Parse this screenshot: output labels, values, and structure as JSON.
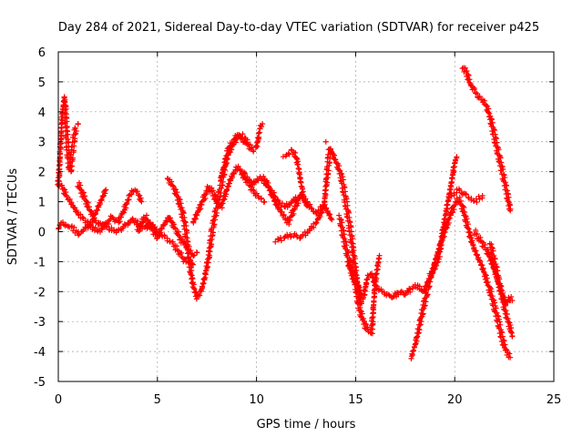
{
  "chart_data": {
    "type": "scatter",
    "title": "Day 284 of 2021, Sidereal Day-to-day VTEC variation (SDTVAR) for receiver p425",
    "xlabel": "GPS time / hours",
    "ylabel": "SDTVAR / TECUs",
    "xlim": [
      0,
      25
    ],
    "ylim": [
      -5,
      6
    ],
    "xticks": [
      "0",
      "5",
      "10",
      "15",
      "20",
      "25"
    ],
    "yticks": [
      "-5",
      "-4",
      "-3",
      "-2",
      "-1",
      "0",
      "1",
      "2",
      "3",
      "4",
      "5",
      "6"
    ],
    "grid": true,
    "marker": "+",
    "color": "#ff0000",
    "series": [
      {
        "name": "s1",
        "x": [
          0.0,
          0.15,
          0.3,
          0.45,
          0.6,
          0.75,
          0.9,
          1.0,
          1.2,
          1.5,
          1.8,
          2.0,
          2.3,
          2.6,
          2.9,
          3.2,
          3.5,
          3.8,
          4.1,
          4.4,
          4.6,
          4.8,
          5.0,
          5.2,
          5.4,
          5.6,
          5.8,
          6.0,
          6.2,
          6.4,
          6.6,
          6.8
        ],
        "y": [
          0.1,
          0.3,
          0.25,
          0.15,
          0.2,
          0.1,
          0.0,
          -0.1,
          0.0,
          0.2,
          0.4,
          0.3,
          0.2,
          0.1,
          0.0,
          0.1,
          0.3,
          0.4,
          0.2,
          0.1,
          0.3,
          0.2,
          0.0,
          -0.1,
          -0.2,
          -0.3,
          -0.4,
          -0.6,
          -0.8,
          -1.0,
          -0.9,
          -1.1
        ]
      },
      {
        "name": "s2",
        "x": [
          0.0,
          0.1,
          0.2,
          0.3,
          0.35,
          0.4,
          0.5,
          0.6,
          0.7,
          0.8,
          0.9,
          1.0
        ],
        "y": [
          1.5,
          2.7,
          3.9,
          4.5,
          4.3,
          3.5,
          2.5,
          2.0,
          2.6,
          3.2,
          3.5,
          3.6
        ]
      },
      {
        "name": "s3",
        "x": [
          0.0,
          0.2,
          0.4,
          0.6,
          0.8,
          1.0,
          1.3,
          1.6,
          2.0,
          2.4,
          2.7,
          3.0,
          3.3,
          3.6,
          3.8,
          4.0,
          4.2
        ],
        "y": [
          1.6,
          1.5,
          1.2,
          1.0,
          0.8,
          0.6,
          0.4,
          0.2,
          0.0,
          0.2,
          0.5,
          0.3,
          0.7,
          1.2,
          1.4,
          1.3,
          1.0
        ]
      },
      {
        "name": "s4",
        "x": [
          1.0,
          1.2,
          1.4,
          1.6,
          1.8,
          2.0,
          2.2,
          2.4
        ],
        "y": [
          1.6,
          1.3,
          1.0,
          0.7,
          0.5,
          0.8,
          1.1,
          1.4
        ]
      },
      {
        "name": "s5",
        "x": [
          4.0,
          4.2,
          4.4,
          4.6,
          4.8,
          5.0,
          5.2,
          5.4,
          5.6,
          5.8,
          6.0,
          6.2,
          6.5,
          6.8,
          7.0
        ],
        "y": [
          0.0,
          0.3,
          0.5,
          0.2,
          0.0,
          -0.2,
          0.1,
          0.3,
          0.5,
          0.2,
          0.0,
          -0.3,
          -0.5,
          -0.8,
          -0.7
        ]
      },
      {
        "name": "s6",
        "x": [
          5.5,
          5.8,
          6.0,
          6.2,
          6.4,
          6.6,
          6.8,
          7.0,
          7.2,
          7.4,
          7.6,
          7.8,
          8.0,
          8.2,
          8.4,
          8.6,
          8.8,
          9.0,
          9.2,
          9.4,
          9.6
        ],
        "y": [
          1.8,
          1.5,
          1.2,
          0.8,
          0.2,
          -1.0,
          -1.8,
          -2.2,
          -2.0,
          -1.5,
          -0.8,
          0.2,
          0.8,
          1.5,
          2.2,
          2.8,
          3.0,
          3.2,
          3.1,
          3.0,
          2.9
        ]
      },
      {
        "name": "s7",
        "x": [
          6.8,
          7.0,
          7.2,
          7.4,
          7.6,
          7.8,
          8.0,
          8.2,
          8.4,
          8.6,
          8.8,
          9.0,
          9.2,
          9.4,
          9.6,
          9.8,
          10.0,
          10.2,
          10.4
        ],
        "y": [
          0.3,
          0.6,
          0.9,
          1.2,
          1.5,
          1.3,
          1.0,
          0.8,
          1.2,
          1.6,
          1.9,
          2.1,
          2.0,
          1.8,
          1.6,
          1.4,
          1.2,
          1.1,
          1.0
        ]
      },
      {
        "name": "s8",
        "x": [
          8.2,
          8.4,
          8.6,
          8.8,
          9.0,
          9.2,
          9.4,
          9.6,
          9.8,
          10.0,
          10.1,
          10.2,
          10.3
        ],
        "y": [
          1.8,
          2.2,
          2.6,
          2.9,
          3.1,
          3.25,
          3.1,
          2.9,
          2.7,
          2.8,
          3.2,
          3.5,
          3.6
        ]
      },
      {
        "name": "s9",
        "x": [
          9.0,
          9.4,
          9.8,
          10.2,
          10.6,
          11.0,
          11.4,
          11.8,
          12.2,
          12.6,
          13.0,
          13.4,
          13.8
        ],
        "y": [
          2.2,
          1.9,
          1.6,
          1.8,
          1.5,
          1.1,
          0.8,
          1.0,
          1.2,
          0.9,
          0.6,
          0.9,
          0.4
        ]
      },
      {
        "name": "s10",
        "x": [
          10.4,
          10.6,
          10.8,
          11.0,
          11.2,
          11.4,
          11.6,
          11.8,
          12.0,
          12.2
        ],
        "y": [
          1.8,
          1.5,
          1.2,
          0.9,
          0.7,
          0.5,
          0.3,
          0.6,
          0.9,
          1.2
        ]
      },
      {
        "name": "s11",
        "x": [
          11.4,
          11.6,
          11.8,
          12.0,
          12.1,
          12.2,
          12.3,
          12.4,
          12.6
        ],
        "y": [
          2.5,
          2.6,
          2.7,
          2.5,
          2.2,
          1.8,
          1.4,
          1.1,
          0.9
        ]
      },
      {
        "name": "s12",
        "x": [
          11.0,
          11.4,
          11.8,
          12.2,
          12.6,
          13.0,
          13.4,
          13.7,
          13.9,
          14.1,
          14.3,
          14.5,
          14.7,
          14.9,
          15.1,
          15.3
        ],
        "y": [
          -0.3,
          -0.2,
          -0.1,
          -0.2,
          0.0,
          0.3,
          0.8,
          2.8,
          2.5,
          2.2,
          1.8,
          1.0,
          0.2,
          -0.8,
          -1.8,
          -2.4
        ]
      },
      {
        "name": "s13",
        "x": [
          14.2,
          14.4,
          14.6,
          14.8,
          15.0,
          15.2,
          15.4,
          15.6,
          15.8,
          16.0,
          16.3,
          16.6,
          16.9,
          17.2,
          17.5,
          17.8,
          18.1,
          18.4,
          18.7,
          19.0
        ],
        "y": [
          0.5,
          -0.2,
          -0.8,
          -1.2,
          -1.6,
          -2.0,
          -2.2,
          -1.5,
          -1.4,
          -1.8,
          -2.0,
          -2.1,
          -2.2,
          -2.0,
          -2.1,
          -1.9,
          -1.8,
          -2.0,
          -1.6,
          -1.2
        ]
      },
      {
        "name": "s14",
        "x": [
          14.6,
          14.8,
          15.0,
          15.2,
          15.4,
          15.6,
          15.8,
          16.0,
          16.2
        ],
        "y": [
          -1.0,
          -1.4,
          -1.8,
          -2.6,
          -3.0,
          -3.3,
          -3.4,
          -1.6,
          -0.8
        ]
      },
      {
        "name": "s15",
        "x": [
          17.8,
          18.0,
          18.2,
          18.4,
          18.6,
          18.8,
          19.0,
          19.2,
          19.4,
          19.6,
          19.8,
          20.0,
          20.1
        ],
        "y": [
          -4.2,
          -3.8,
          -3.2,
          -2.6,
          -2.0,
          -1.4,
          -1.2,
          -0.8,
          0.0,
          0.8,
          1.5,
          2.3,
          2.5
        ]
      },
      {
        "name": "s16",
        "x": [
          18.8,
          19.0,
          19.2,
          19.4,
          19.6,
          19.8,
          20.0,
          20.2,
          20.4,
          20.6,
          20.8,
          21.0,
          21.2,
          21.4,
          21.6,
          21.8,
          22.0,
          22.2,
          22.4,
          22.6,
          22.8
        ],
        "y": [
          -1.5,
          -1.0,
          -0.6,
          -0.2,
          0.2,
          0.6,
          0.9,
          1.1,
          0.8,
          0.3,
          -0.2,
          -0.6,
          -0.9,
          -1.2,
          -1.6,
          -2.0,
          -2.5,
          -3.0,
          -3.6,
          -4.0,
          -4.2
        ]
      },
      {
        "name": "s17",
        "x": [
          19.8,
          20.0,
          20.2,
          20.4,
          20.6,
          20.8,
          21.0,
          21.2,
          21.4
        ],
        "y": [
          1.2,
          1.3,
          1.4,
          1.3,
          1.2,
          1.1,
          1.0,
          1.1,
          1.2
        ]
      },
      {
        "name": "s18",
        "x": [
          20.4,
          20.6,
          20.8,
          21.0,
          21.2,
          21.4,
          21.6,
          21.8,
          22.0,
          22.2,
          22.4,
          22.6,
          22.8
        ],
        "y": [
          5.5,
          5.3,
          4.9,
          4.7,
          4.5,
          4.4,
          4.2,
          3.8,
          3.2,
          2.6,
          2.0,
          1.4,
          0.7
        ]
      },
      {
        "name": "s19",
        "x": [
          21.0,
          21.2,
          21.4,
          21.6,
          21.8,
          22.0,
          22.2,
          22.4,
          22.6,
          22.8,
          22.9
        ],
        "y": [
          0.0,
          -0.2,
          -0.4,
          -0.6,
          -0.9,
          -1.3,
          -1.7,
          -2.1,
          -2.4,
          -2.2,
          -2.3
        ]
      },
      {
        "name": "s20",
        "x": [
          21.8,
          22.0,
          22.2,
          22.4,
          22.6,
          22.8,
          22.9
        ],
        "y": [
          -0.4,
          -1.0,
          -1.6,
          -2.2,
          -2.8,
          -3.2,
          -3.5
        ]
      },
      {
        "name": "s21",
        "x": [
          13.5
        ],
        "y": [
          3.0
        ]
      }
    ]
  }
}
